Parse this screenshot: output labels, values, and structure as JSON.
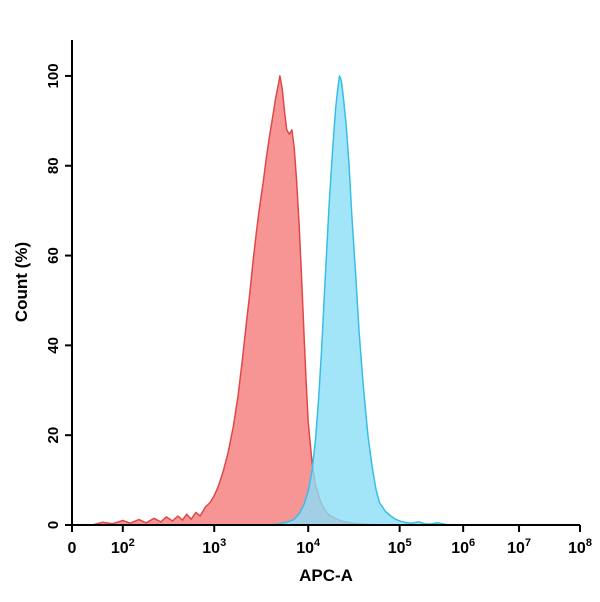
{
  "figure": {
    "x_axis_title": "APC-A",
    "y_axis_title": "Count (%)"
  },
  "chart_data": {
    "type": "area",
    "title": "",
    "xlabel": "APC-A",
    "ylabel": "Count (%)",
    "x_scale": "biexponential-log",
    "grid": false,
    "legend": "none",
    "ylim": [
      0,
      108
    ],
    "y_ticks": [
      0,
      20,
      40,
      60,
      80,
      100
    ],
    "x_ticks": [
      {
        "label": "0",
        "value": 0,
        "exp": null
      },
      {
        "label": "10^2",
        "base": "10",
        "exp": "2",
        "value": 100
      },
      {
        "label": "10^3",
        "base": "10",
        "exp": "3",
        "value": 1000
      },
      {
        "label": "10^4",
        "base": "10",
        "exp": "4",
        "value": 10000
      },
      {
        "label": "10^5",
        "base": "10",
        "exp": "5",
        "value": 100000
      },
      {
        "label": "10^6",
        "base": "10",
        "exp": "6",
        "value": 1000000
      },
      {
        "label": "10^7",
        "base": "10",
        "exp": "7",
        "value": 10000000
      },
      {
        "label": "10^8",
        "base": "10",
        "exp": "8",
        "value": 100000000
      }
    ],
    "series": [
      {
        "name": "red-histogram",
        "peak_x": 5000,
        "peak_y": 100,
        "fill": "#F57B7B",
        "stroke": "#E04848",
        "opacity": 0.8,
        "points": [
          [
            40,
            0
          ],
          [
            60,
            0.6
          ],
          [
            80,
            0.3
          ],
          [
            100,
            1.0
          ],
          [
            120,
            0.4
          ],
          [
            150,
            1.2
          ],
          [
            180,
            0.5
          ],
          [
            220,
            1.5
          ],
          [
            260,
            0.7
          ],
          [
            300,
            1.8
          ],
          [
            350,
            0.9
          ],
          [
            400,
            2.0
          ],
          [
            450,
            1.1
          ],
          [
            500,
            2.4
          ],
          [
            560,
            1.3
          ],
          [
            630,
            2.8
          ],
          [
            700,
            2.0
          ],
          [
            800,
            4.0
          ],
          [
            900,
            5.0
          ],
          [
            1000,
            6.5
          ],
          [
            1100,
            8.5
          ],
          [
            1250,
            12
          ],
          [
            1400,
            16
          ],
          [
            1600,
            22
          ],
          [
            1800,
            29
          ],
          [
            2000,
            37
          ],
          [
            2200,
            45
          ],
          [
            2400,
            52
          ],
          [
            2600,
            59
          ],
          [
            2800,
            65
          ],
          [
            3000,
            70
          ],
          [
            3300,
            76
          ],
          [
            3600,
            82
          ],
          [
            3900,
            87
          ],
          [
            4200,
            91
          ],
          [
            4500,
            95
          ],
          [
            4800,
            98
          ],
          [
            5000,
            100
          ],
          [
            5300,
            97
          ],
          [
            5600,
            92
          ],
          [
            5900,
            88
          ],
          [
            6300,
            87
          ],
          [
            6700,
            88
          ],
          [
            7100,
            84
          ],
          [
            7500,
            77
          ],
          [
            8000,
            67
          ],
          [
            8500,
            55
          ],
          [
            9000,
            43
          ],
          [
            9500,
            32
          ],
          [
            10000,
            23
          ],
          [
            11000,
            14
          ],
          [
            12000,
            9
          ],
          [
            13500,
            5.5
          ],
          [
            15000,
            3.5
          ],
          [
            17000,
            2.2
          ],
          [
            20000,
            1.4
          ],
          [
            24000,
            0.8
          ],
          [
            30000,
            0.4
          ],
          [
            40000,
            0.2
          ],
          [
            55000,
            0
          ]
        ]
      },
      {
        "name": "cyan-histogram",
        "peak_x": 22000,
        "peak_y": 100,
        "fill": "#8BDFF7",
        "stroke": "#38BEE6",
        "opacity": 0.8,
        "points": [
          [
            4000,
            0
          ],
          [
            5000,
            0.3
          ],
          [
            6000,
            0.7
          ],
          [
            7000,
            1.2
          ],
          [
            8000,
            2.5
          ],
          [
            9000,
            4.5
          ],
          [
            10000,
            7.5
          ],
          [
            11000,
            12
          ],
          [
            12000,
            19
          ],
          [
            13000,
            28
          ],
          [
            14000,
            39
          ],
          [
            15000,
            51
          ],
          [
            16000,
            62
          ],
          [
            17000,
            72
          ],
          [
            18000,
            80
          ],
          [
            19000,
            87
          ],
          [
            20000,
            93
          ],
          [
            21000,
            97
          ],
          [
            22000,
            100
          ],
          [
            23000,
            99
          ],
          [
            24000,
            96
          ],
          [
            26000,
            89
          ],
          [
            28000,
            80
          ],
          [
            30000,
            69
          ],
          [
            33000,
            56
          ],
          [
            36000,
            43
          ],
          [
            40000,
            31
          ],
          [
            45000,
            20
          ],
          [
            50000,
            13
          ],
          [
            55000,
            8
          ],
          [
            60000,
            5
          ],
          [
            70000,
            3
          ],
          [
            80000,
            2
          ],
          [
            90000,
            1.3
          ],
          [
            100000,
            0.9
          ],
          [
            120000,
            0.6
          ],
          [
            150000,
            0.4
          ],
          [
            200000,
            0.7
          ],
          [
            250000,
            0.3
          ],
          [
            300000,
            0.2
          ],
          [
            400000,
            0.5
          ],
          [
            500000,
            0.2
          ],
          [
            600000,
            0
          ]
        ]
      }
    ]
  }
}
